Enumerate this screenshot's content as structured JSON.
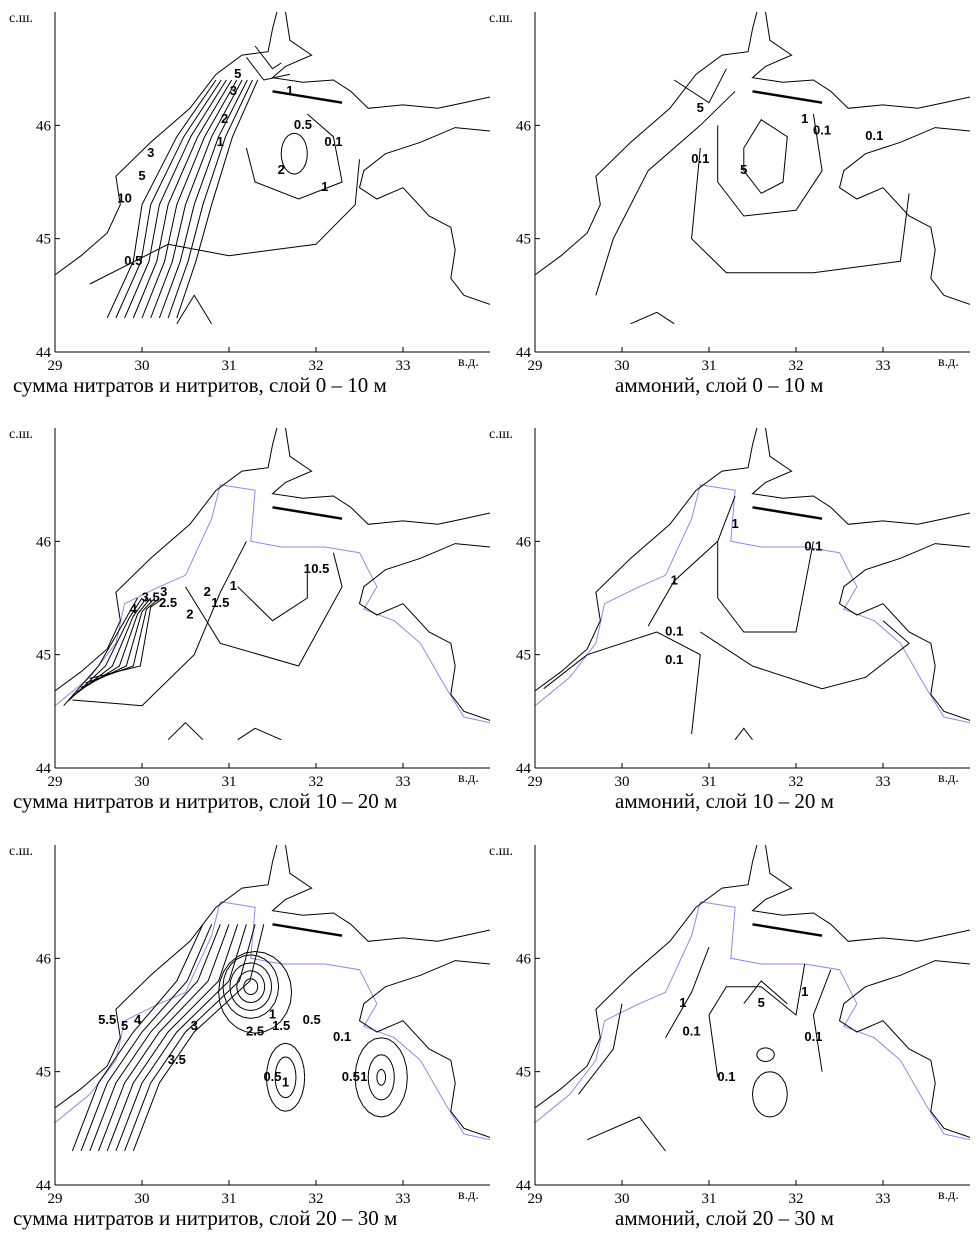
{
  "panels": [
    {
      "caption": "сумма нитратов и нитритов, слой 0 – 10 м",
      "xlim": [
        29,
        34
      ],
      "ylim": [
        44,
        47
      ],
      "xticks": [
        29,
        30,
        31,
        32,
        33
      ],
      "yticks": [
        44,
        45,
        46
      ],
      "lat_label": "с.ш.",
      "lon_label": "в.д.",
      "contour_labels": [
        5,
        3,
        2,
        1,
        1,
        0.5,
        0.1,
        2,
        1,
        3,
        5,
        10,
        0.5
      ]
    },
    {
      "caption": "аммоний, слой 0 – 10 м",
      "xlim": [
        29,
        34
      ],
      "ylim": [
        44,
        47
      ],
      "xticks": [
        29,
        30,
        31,
        32,
        33
      ],
      "yticks": [
        44,
        45,
        46
      ],
      "lat_label": "с.ш.",
      "lon_label": "в.д.",
      "contour_labels": [
        5,
        1,
        0.1,
        0.1,
        0.1,
        5
      ]
    },
    {
      "caption": "сумма нитратов и нитритов, слой 10 – 20 м",
      "xlim": [
        29,
        34
      ],
      "ylim": [
        44,
        47
      ],
      "xticks": [
        29,
        30,
        31,
        32,
        33
      ],
      "yticks": [
        44,
        45,
        46
      ],
      "lat_label": "с.ш.",
      "lon_label": "в.д.",
      "contour_labels": [
        2,
        1,
        1.5,
        2,
        2.5,
        3.5,
        3,
        4,
        1,
        0.5
      ]
    },
    {
      "caption": "аммоний, слой 10 – 20 м",
      "xlim": [
        29,
        34
      ],
      "ylim": [
        44,
        47
      ],
      "xticks": [
        29,
        30,
        31,
        32,
        33
      ],
      "yticks": [
        44,
        45,
        46
      ],
      "lat_label": "с.ш.",
      "lon_label": "в.д.",
      "contour_labels": [
        1,
        1,
        0.1,
        0.1,
        0.1
      ]
    },
    {
      "caption": "сумма нитратов и нитритов, слой 20 – 30 м",
      "xlim": [
        29,
        34
      ],
      "ylim": [
        44,
        47
      ],
      "xticks": [
        29,
        30,
        31,
        32,
        33
      ],
      "yticks": [
        44,
        45,
        46
      ],
      "lat_label": "с.ш.",
      "lon_label": "в.д.",
      "contour_labels": [
        5.5,
        5,
        4,
        3,
        3.5,
        2.5,
        1.5,
        1,
        0.5,
        0.1,
        0.5,
        1,
        0.5,
        1
      ]
    },
    {
      "caption": "аммоний, слой 20 – 30 м",
      "xlim": [
        29,
        34
      ],
      "ylim": [
        44,
        47
      ],
      "xticks": [
        29,
        30,
        31,
        32,
        33
      ],
      "yticks": [
        44,
        45,
        46
      ],
      "lat_label": "с.ш.",
      "lon_label": "в.д.",
      "contour_labels": [
        1,
        0.1,
        5,
        1,
        0.1,
        0.1
      ]
    }
  ]
}
